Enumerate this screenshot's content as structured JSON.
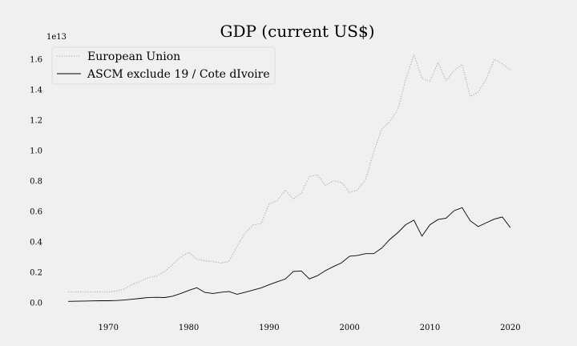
{
  "chart_data": {
    "type": "line",
    "title": "GDP (current US$)",
    "xlabel": "",
    "ylabel": "",
    "y_offset_label": "1e13",
    "xlim": [
      1962.3,
      2024.7
    ],
    "ylim": [
      -0.08,
      1.7
    ],
    "x_ticks": [
      1970,
      1980,
      1990,
      2000,
      2010,
      2020
    ],
    "y_ticks": [
      0.0,
      0.2,
      0.4,
      0.6,
      0.8,
      1.0,
      1.2,
      1.4,
      1.6
    ],
    "y_tick_labels": [
      "0.0",
      "0.2",
      "0.4",
      "0.6",
      "0.8",
      "1.0",
      "1.2",
      "1.4",
      "1.6"
    ],
    "grid": false,
    "legend_position": "top-left",
    "x": [
      1965,
      1966,
      1967,
      1968,
      1969,
      1970,
      1971,
      1972,
      1973,
      1974,
      1975,
      1976,
      1977,
      1978,
      1979,
      1980,
      1981,
      1982,
      1983,
      1984,
      1985,
      1986,
      1987,
      1988,
      1989,
      1990,
      1991,
      1992,
      1993,
      1994,
      1995,
      1996,
      1997,
      1998,
      1999,
      2000,
      2001,
      2002,
      2003,
      2004,
      2005,
      2006,
      2007,
      2008,
      2009,
      2010,
      2011,
      2012,
      2013,
      2014,
      2015,
      2016,
      2017,
      2018,
      2019,
      2020
    ],
    "series": [
      {
        "name": "European Union",
        "color": "#aaaaaa",
        "style": "dotted",
        "values": [
          0.07,
          0.07,
          0.07,
          0.07,
          0.07,
          0.07,
          0.075,
          0.09,
          0.12,
          0.14,
          0.165,
          0.175,
          0.205,
          0.25,
          0.3,
          0.33,
          0.285,
          0.275,
          0.27,
          0.26,
          0.27,
          0.37,
          0.46,
          0.51,
          0.52,
          0.65,
          0.67,
          0.74,
          0.68,
          0.72,
          0.83,
          0.84,
          0.77,
          0.8,
          0.79,
          0.725,
          0.74,
          0.81,
          0.99,
          1.14,
          1.19,
          1.27,
          1.47,
          1.63,
          1.475,
          1.455,
          1.58,
          1.46,
          1.525,
          1.565,
          1.355,
          1.385,
          1.47,
          1.6,
          1.57,
          1.53
        ]
      },
      {
        "name": "ASCM exclude 19 / Cote dIvoire",
        "color": "#000000",
        "style": "solid",
        "values": [
          0.008,
          0.009,
          0.01,
          0.011,
          0.012,
          0.012,
          0.014,
          0.017,
          0.022,
          0.028,
          0.034,
          0.035,
          0.033,
          0.042,
          0.06,
          0.08,
          0.098,
          0.067,
          0.06,
          0.068,
          0.073,
          0.055,
          0.068,
          0.082,
          0.097,
          0.118,
          0.137,
          0.155,
          0.205,
          0.208,
          0.156,
          0.177,
          0.21,
          0.237,
          0.262,
          0.305,
          0.31,
          0.322,
          0.322,
          0.358,
          0.415,
          0.46,
          0.513,
          0.542,
          0.437,
          0.512,
          0.546,
          0.555,
          0.604,
          0.624,
          0.538,
          0.5,
          0.525,
          0.549,
          0.563,
          0.493
        ]
      }
    ]
  }
}
